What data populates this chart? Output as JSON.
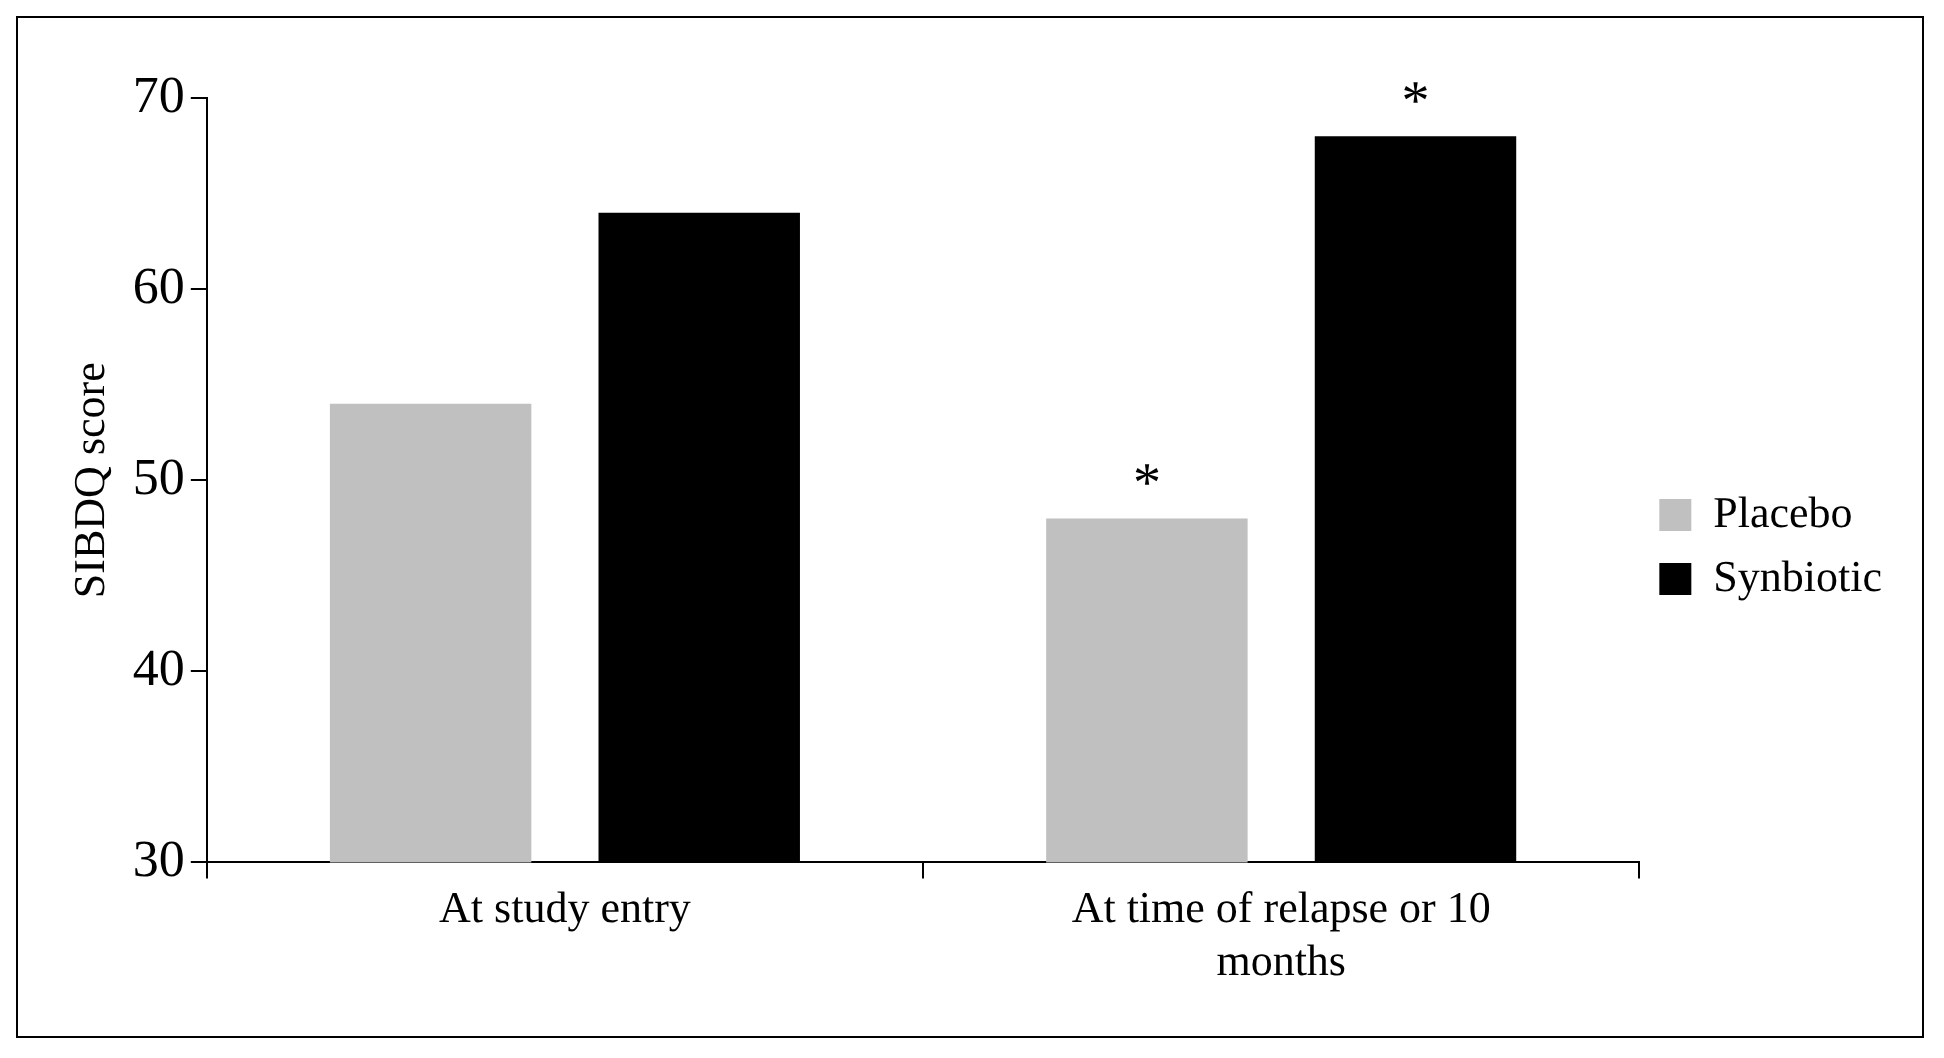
{
  "chart_data": {
    "type": "bar",
    "ylabel": "SIBDQ score",
    "categories": [
      "At study entry",
      "At time of relapse or 10 months"
    ],
    "series": [
      {
        "name": "Placebo",
        "color": "#c0c0c0",
        "values": [
          54,
          48
        ]
      },
      {
        "name": "Synbiotic",
        "color": "#000000",
        "values": [
          64,
          68
        ]
      }
    ],
    "ylim": [
      30,
      70
    ],
    "yticks": [
      30,
      40,
      50,
      60,
      70
    ],
    "grid": false,
    "legend": "right",
    "annotations": [
      "*",
      "*"
    ]
  }
}
